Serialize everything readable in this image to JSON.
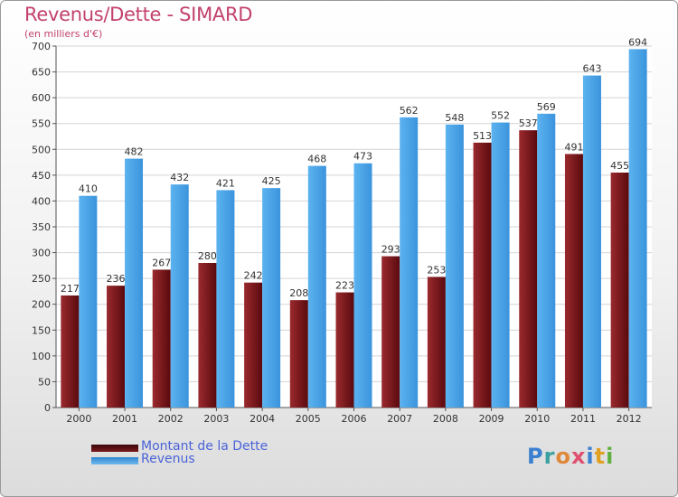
{
  "chart_data": {
    "type": "bar",
    "title": "Revenus/Dette - SIMARD",
    "subtitle": "(en milliers d'€)",
    "categories": [
      "2000",
      "2001",
      "2002",
      "2003",
      "2004",
      "2005",
      "2006",
      "2007",
      "2008",
      "2009",
      "2010",
      "2011",
      "2012"
    ],
    "series": [
      {
        "name": "Montant de la Dette",
        "color": "#7a1a1e",
        "values": [
          217,
          236,
          267,
          280,
          242,
          208,
          223,
          293,
          253,
          513,
          537,
          491,
          455
        ]
      },
      {
        "name": "Revenus",
        "color": "#4aa3e6",
        "values": [
          410,
          482,
          432,
          421,
          425,
          468,
          473,
          562,
          548,
          552,
          569,
          643,
          694
        ]
      }
    ],
    "ylim": [
      0,
      700
    ],
    "yticks": [
      0,
      50,
      100,
      150,
      200,
      250,
      300,
      350,
      400,
      450,
      500,
      550,
      600,
      650,
      700
    ],
    "grid": true,
    "legend_position": "bottom-left"
  },
  "logo": {
    "text": "Proxiti"
  }
}
